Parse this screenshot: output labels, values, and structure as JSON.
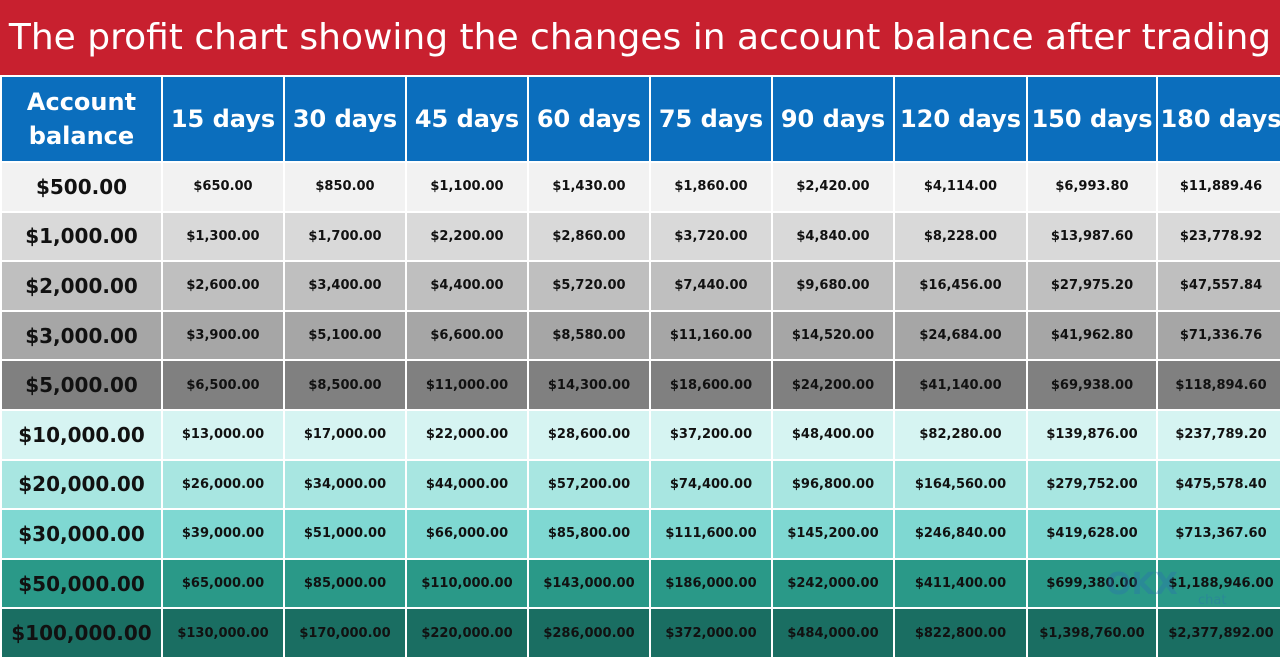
{
  "title": "The profit chart showing the changes in account balance after trading",
  "colors": {
    "title_background": "#c8202f",
    "header_background": "#0b6ebd",
    "header_text": "#ffffff",
    "row_backgrounds": [
      "#f2f2f2",
      "#d9d9d9",
      "#bfbfbf",
      "#a6a6a6",
      "#808080",
      "#d6f4f2",
      "#a8e6e1",
      "#7fd8d2",
      "#2a9988",
      "#1a6e62"
    ]
  },
  "chart_data": {
    "type": "table",
    "title": "The profit chart showing the changes in account balance after trading",
    "corner_header": "Account balance",
    "columns": [
      "15 days",
      "30 days",
      "45 days",
      "60 days",
      "75 days",
      "90 days",
      "120 days",
      "150 days",
      "180 days"
    ],
    "rows": [
      {
        "label": "$500.00",
        "values": [
          "$650.00",
          "$850.00",
          "$1,100.00",
          "$1,430.00",
          "$1,860.00",
          "$2,420.00",
          "$4,114.00",
          "$6,993.80",
          "$11,889.46"
        ]
      },
      {
        "label": "$1,000.00",
        "values": [
          "$1,300.00",
          "$1,700.00",
          "$2,200.00",
          "$2,860.00",
          "$3,720.00",
          "$4,840.00",
          "$8,228.00",
          "$13,987.60",
          "$23,778.92"
        ]
      },
      {
        "label": "$2,000.00",
        "values": [
          "$2,600.00",
          "$3,400.00",
          "$4,400.00",
          "$5,720.00",
          "$7,440.00",
          "$9,680.00",
          "$16,456.00",
          "$27,975.20",
          "$47,557.84"
        ]
      },
      {
        "label": "$3,000.00",
        "values": [
          "$3,900.00",
          "$5,100.00",
          "$6,600.00",
          "$8,580.00",
          "$11,160.00",
          "$14,520.00",
          "$24,684.00",
          "$41,962.80",
          "$71,336.76"
        ]
      },
      {
        "label": "$5,000.00",
        "values": [
          "$6,500.00",
          "$8,500.00",
          "$11,000.00",
          "$14,300.00",
          "$18,600.00",
          "$24,200.00",
          "$41,140.00",
          "$69,938.00",
          "$118,894.60"
        ]
      },
      {
        "label": "$10,000.00",
        "values": [
          "$13,000.00",
          "$17,000.00",
          "$22,000.00",
          "$28,600.00",
          "$37,200.00",
          "$48,400.00",
          "$82,280.00",
          "$139,876.00",
          "$237,789.20"
        ]
      },
      {
        "label": "$20,000.00",
        "values": [
          "$26,000.00",
          "$34,000.00",
          "$44,000.00",
          "$57,200.00",
          "$74,400.00",
          "$96,800.00",
          "$164,560.00",
          "$279,752.00",
          "$475,578.40"
        ]
      },
      {
        "label": "$30,000.00",
        "values": [
          "$39,000.00",
          "$51,000.00",
          "$66,000.00",
          "$85,800.00",
          "$111,600.00",
          "$145,200.00",
          "$246,840.00",
          "$419,628.00",
          "$713,367.60"
        ]
      },
      {
        "label": "$50,000.00",
        "values": [
          "$65,000.00",
          "$85,000.00",
          "$110,000.00",
          "$143,000.00",
          "$186,000.00",
          "$242,000.00",
          "$411,400.00",
          "$699,380.00",
          "$1,188,946.00"
        ]
      },
      {
        "label": "$100,000.00",
        "values": [
          "$130,000.00",
          "$170,000.00",
          "$220,000.00",
          "$286,000.00",
          "$372,000.00",
          "$484,000.00",
          "$822,800.00",
          "$1,398,760.00",
          "$2,377,892.00"
        ]
      }
    ]
  },
  "watermark": {
    "brand": "OKX",
    "sub": "chat"
  }
}
